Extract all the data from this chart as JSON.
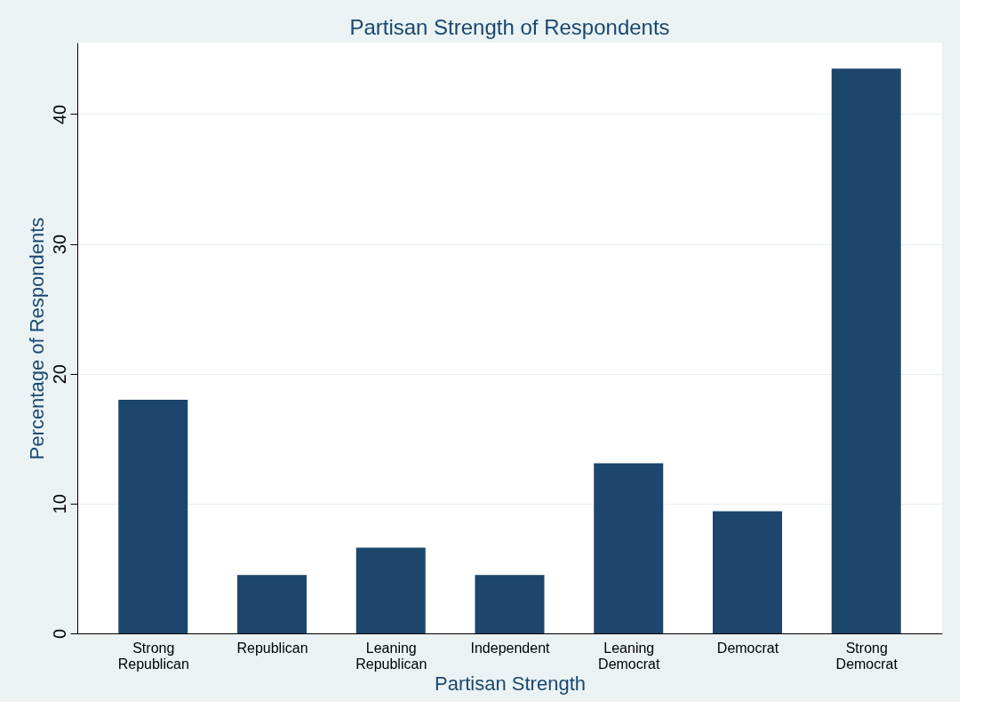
{
  "chart_data": {
    "type": "bar",
    "title": "Partisan Strength of Respondents",
    "xlabel": "Partisan Strength",
    "ylabel": "Percentage of Respondents",
    "categories": [
      "Strong Republican",
      "Republican",
      "Leaning Republican",
      "Independent",
      "Leaning Democrat",
      "Democrat",
      "Strong Democrat"
    ],
    "values": [
      18.0,
      4.5,
      6.6,
      4.5,
      13.1,
      9.4,
      43.5
    ],
    "color": "#1c466c",
    "ylim": [
      0,
      45.5
    ],
    "yticks": [
      0,
      10,
      20,
      30,
      40
    ],
    "grid": "y"
  }
}
